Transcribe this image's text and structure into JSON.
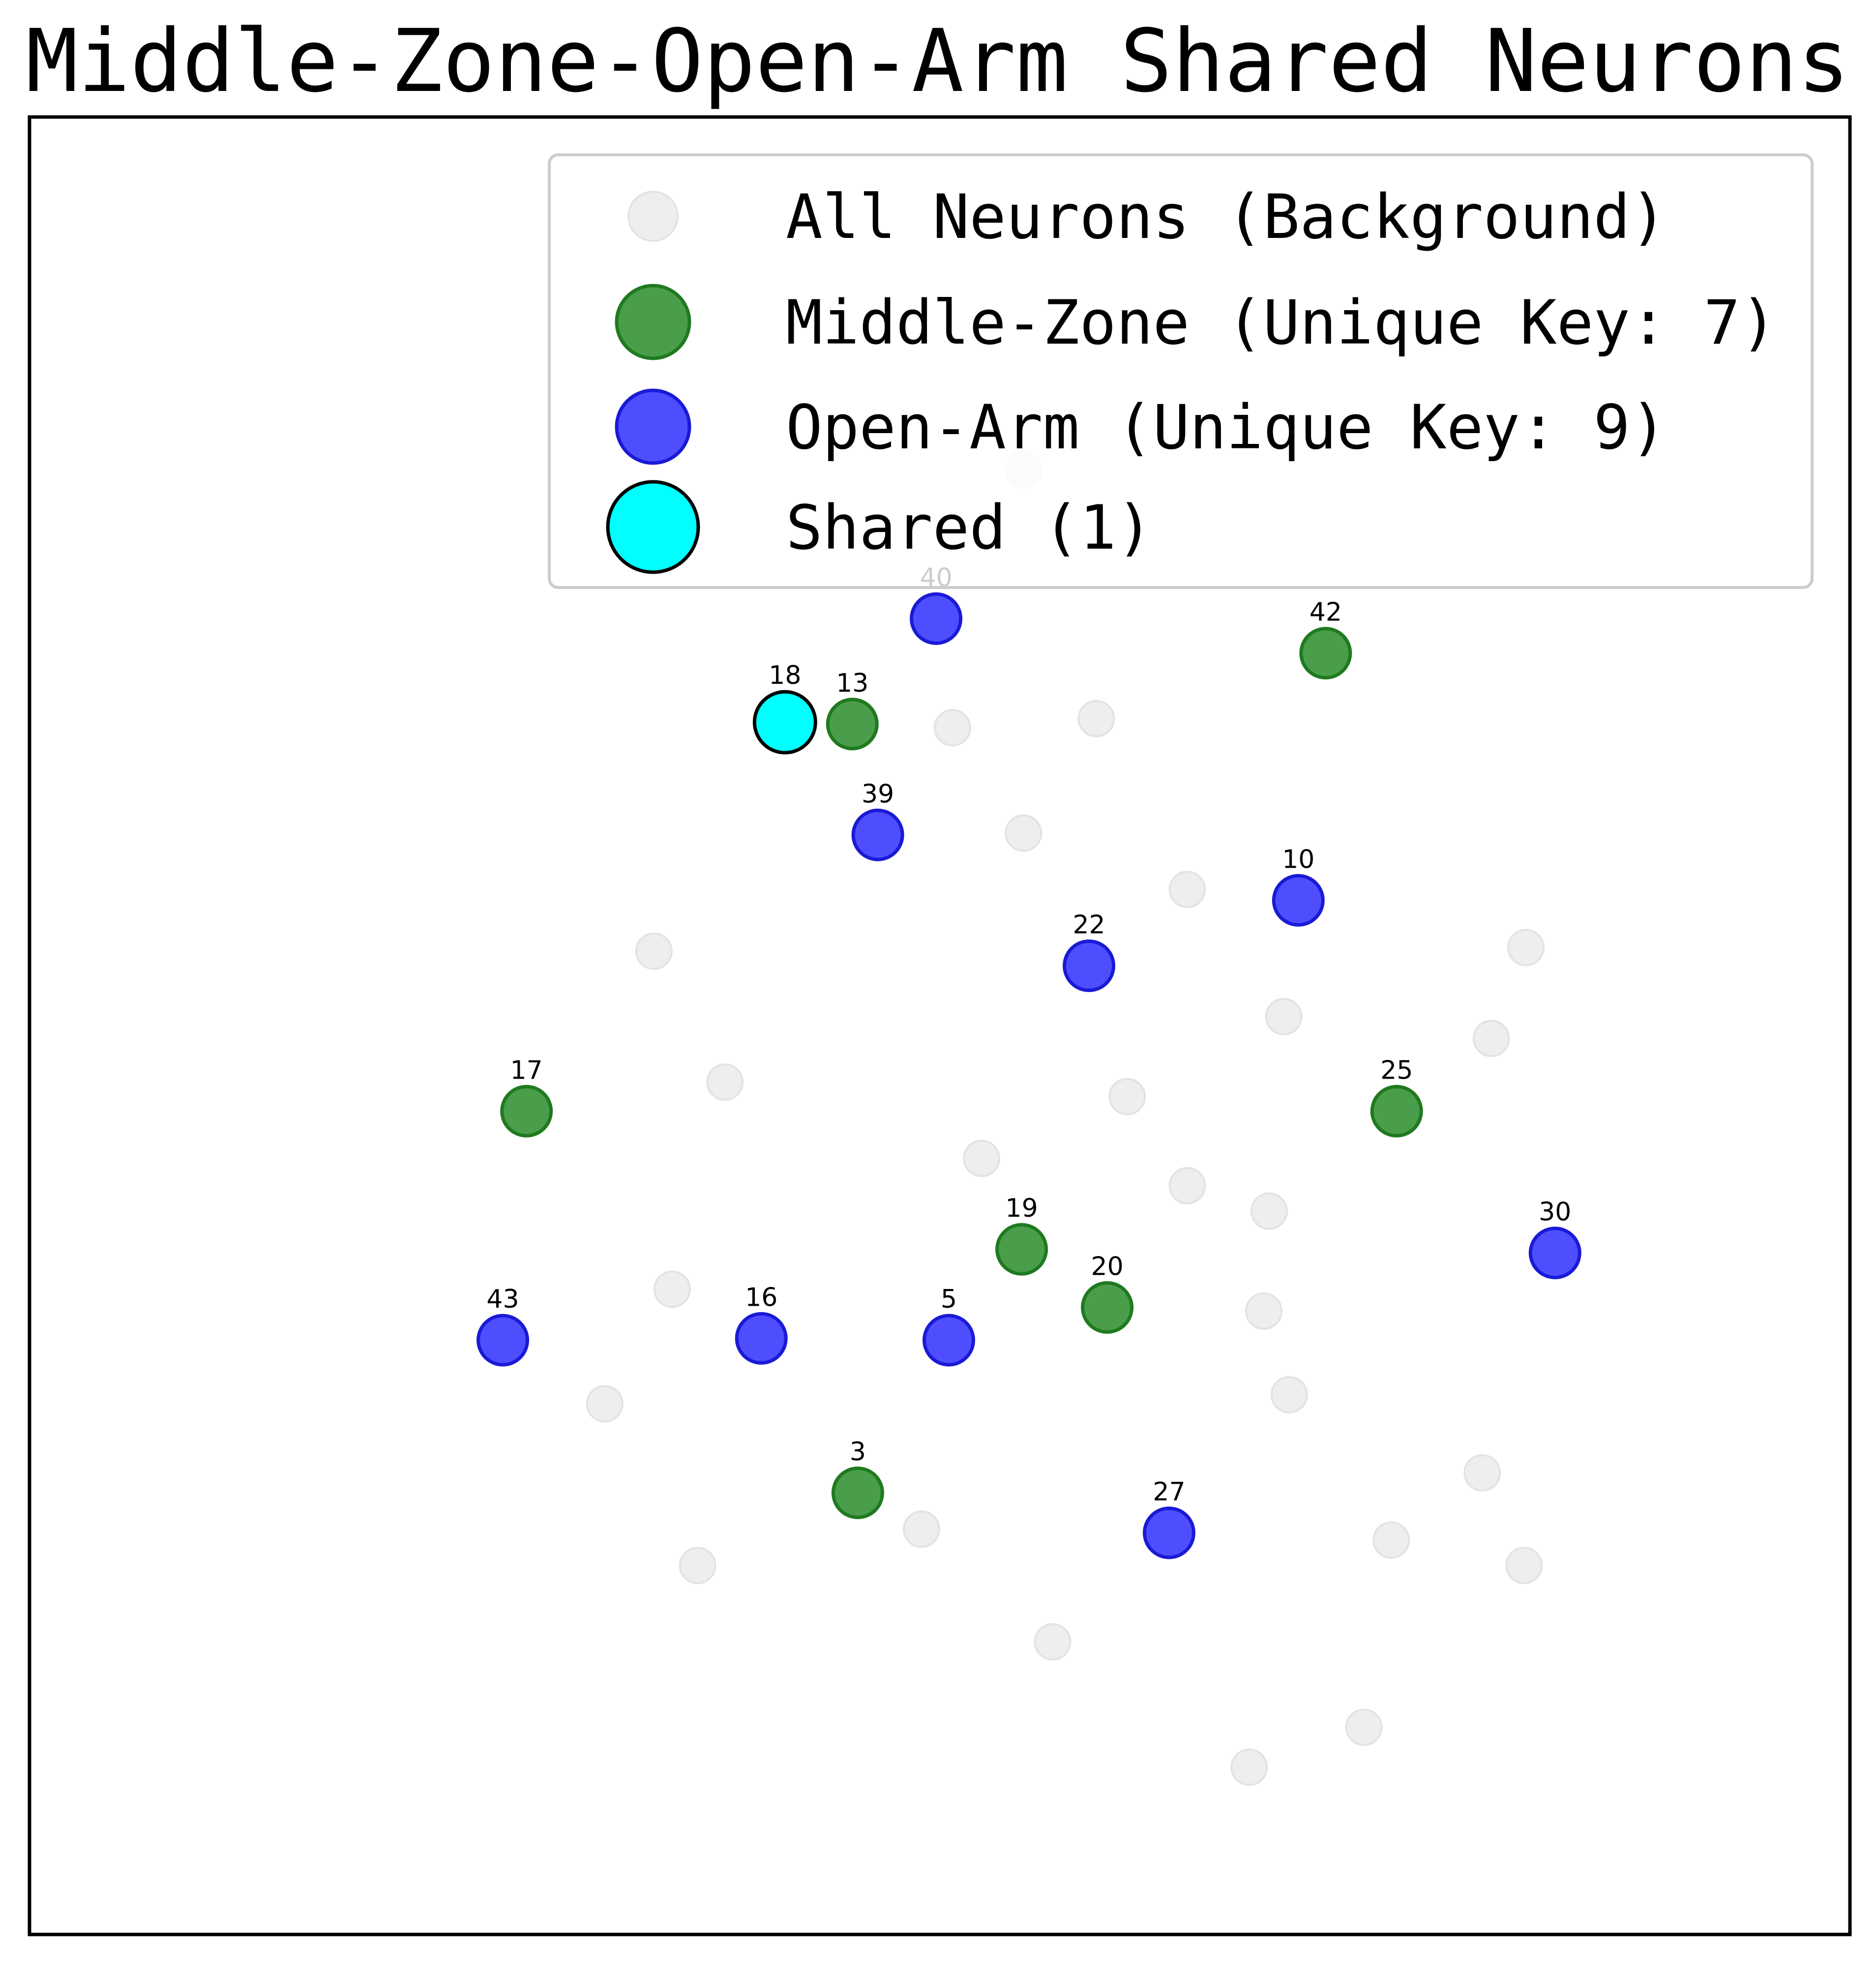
{
  "chart_data": {
    "type": "scatter",
    "title": "Middle-Zone-Open-Arm Shared Neurons",
    "xlabel": "",
    "ylabel": "",
    "xlim": [
      0,
      100
    ],
    "ylim": [
      0,
      100
    ],
    "grid": false,
    "axis_ticks": false,
    "legend_position": "upper-right",
    "series": [
      {
        "key": "background",
        "name": "All Neurons (Background)",
        "color": "#eeeeee",
        "points": [
          {
            "x": 54.6,
            "y": 80.6
          },
          {
            "x": 50.7,
            "y": 66.4
          },
          {
            "x": 58.6,
            "y": 66.9
          },
          {
            "x": 54.6,
            "y": 60.6
          },
          {
            "x": 63.6,
            "y": 57.5
          },
          {
            "x": 34.3,
            "y": 54.1
          },
          {
            "x": 82.2,
            "y": 54.3
          },
          {
            "x": 68.9,
            "y": 50.5
          },
          {
            "x": 80.3,
            "y": 49.3
          },
          {
            "x": 38.2,
            "y": 46.9
          },
          {
            "x": 60.3,
            "y": 46.1
          },
          {
            "x": 52.3,
            "y": 42.7
          },
          {
            "x": 63.6,
            "y": 41.2
          },
          {
            "x": 68.1,
            "y": 39.8
          },
          {
            "x": 35.3,
            "y": 35.5
          },
          {
            "x": 67.8,
            "y": 34.3
          },
          {
            "x": 31.6,
            "y": 29.2
          },
          {
            "x": 69.2,
            "y": 29.7
          },
          {
            "x": 79.8,
            "y": 25.4
          },
          {
            "x": 49.0,
            "y": 22.3
          },
          {
            "x": 74.8,
            "y": 21.7
          },
          {
            "x": 36.7,
            "y": 20.3
          },
          {
            "x": 82.1,
            "y": 20.3
          },
          {
            "x": 56.2,
            "y": 16.1
          },
          {
            "x": 73.3,
            "y": 11.4
          },
          {
            "x": 67.0,
            "y": 9.2
          }
        ]
      },
      {
        "key": "middle",
        "name": "Middle-Zone (Unique Key: 7)",
        "color": "#2a8c2a",
        "points": [
          {
            "id": "42",
            "x": 71.2,
            "y": 70.5
          },
          {
            "id": "13",
            "x": 45.2,
            "y": 66.6
          },
          {
            "id": "17",
            "x": 27.3,
            "y": 45.3
          },
          {
            "id": "25",
            "x": 75.1,
            "y": 45.3
          },
          {
            "id": "19",
            "x": 54.5,
            "y": 37.7
          },
          {
            "id": "20",
            "x": 59.2,
            "y": 34.5
          },
          {
            "id": "3",
            "x": 45.5,
            "y": 24.3
          }
        ]
      },
      {
        "key": "open",
        "name": "Open-Arm (Unique Key: 9)",
        "color": "#2222ff",
        "points": [
          {
            "id": "40",
            "x": 49.8,
            "y": 72.4
          },
          {
            "id": "39",
            "x": 46.6,
            "y": 60.5
          },
          {
            "id": "10",
            "x": 69.7,
            "y": 56.9
          },
          {
            "id": "22",
            "x": 58.2,
            "y": 53.3
          },
          {
            "id": "30",
            "x": 83.8,
            "y": 37.5
          },
          {
            "id": "43",
            "x": 26.0,
            "y": 32.7
          },
          {
            "id": "16",
            "x": 40.2,
            "y": 32.8
          },
          {
            "id": "5",
            "x": 50.5,
            "y": 32.7
          },
          {
            "id": "27",
            "x": 62.6,
            "y": 22.1
          }
        ]
      },
      {
        "key": "shared",
        "name": "Shared (1)",
        "color": "#00ffff",
        "points": [
          {
            "id": "18",
            "x": 41.5,
            "y": 66.7
          }
        ]
      }
    ]
  }
}
